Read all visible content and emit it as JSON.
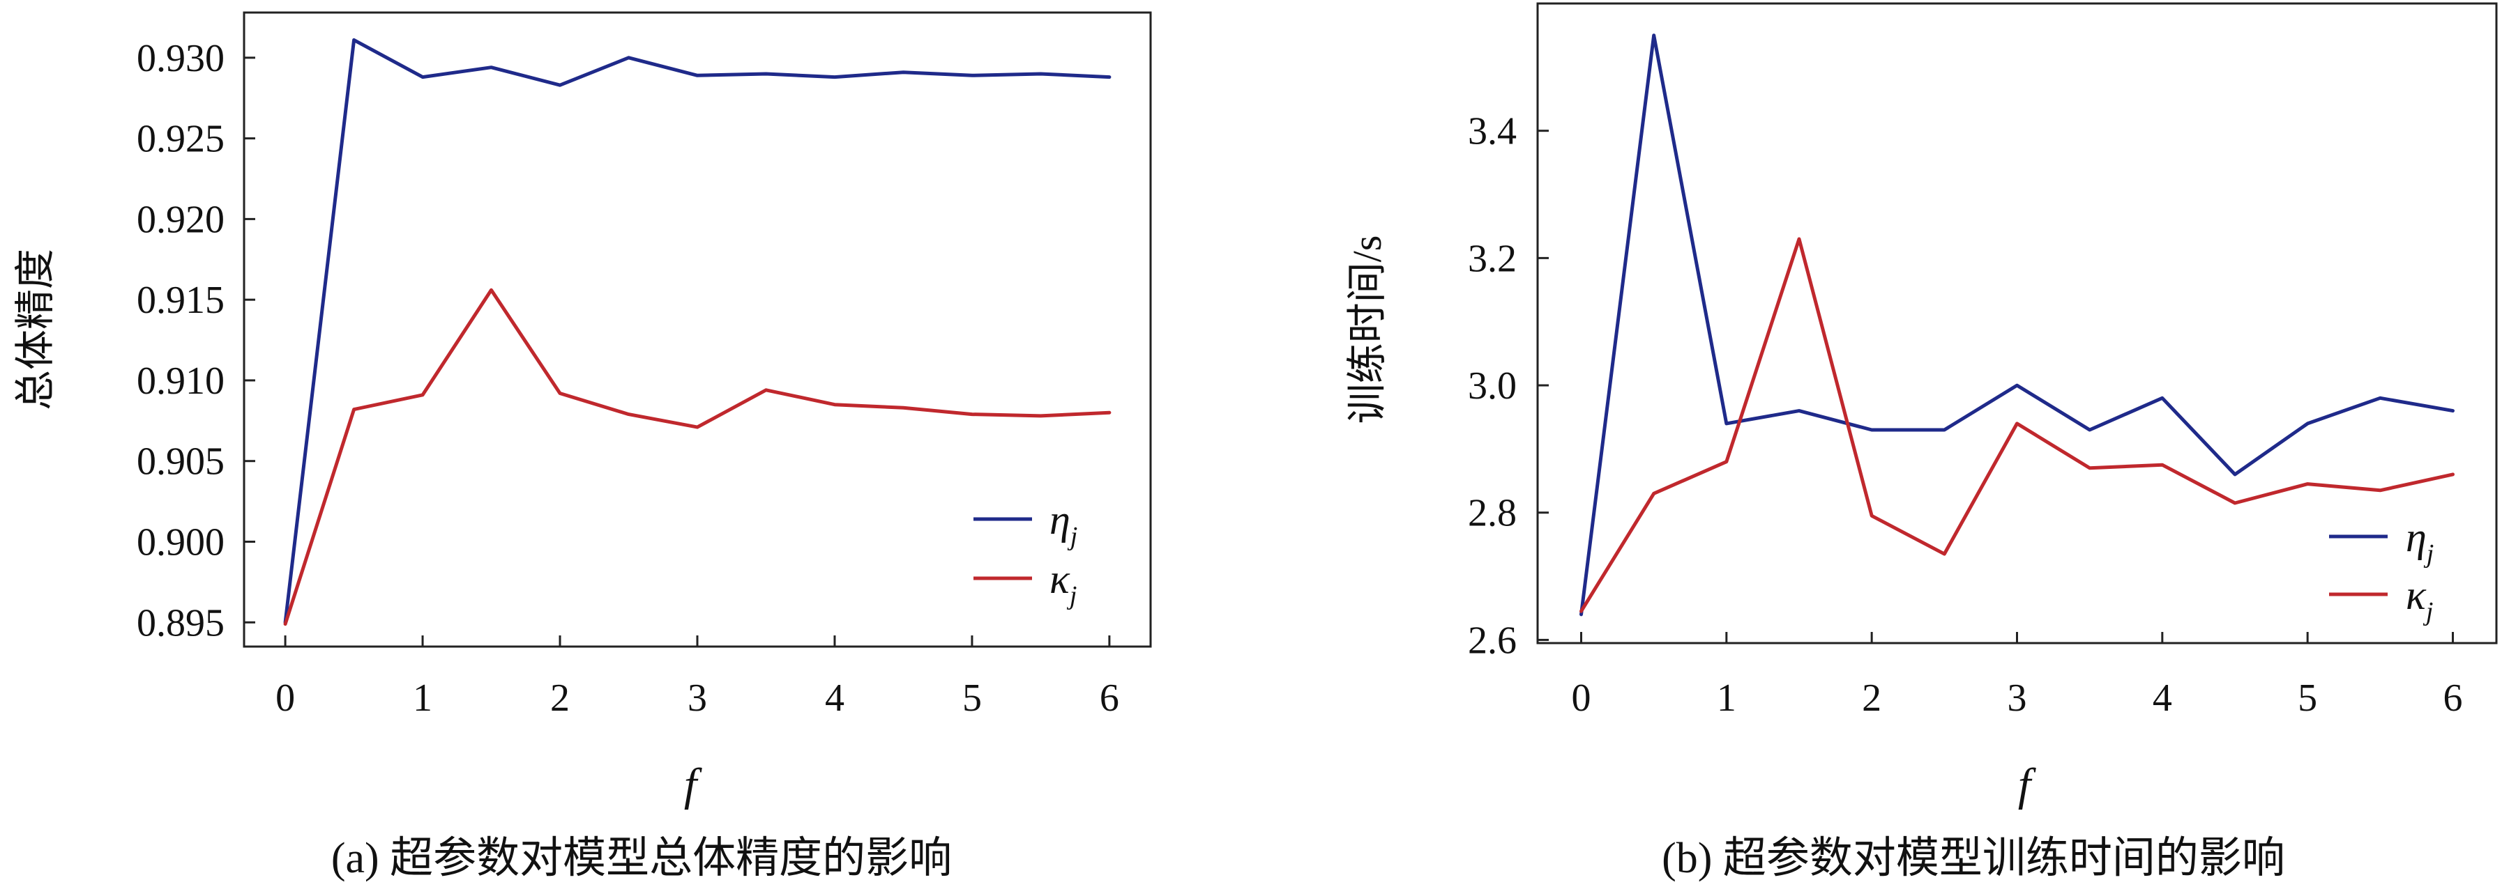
{
  "chart_data": [
    {
      "type": "line",
      "caption": "(a) 超参数对模型总体精度的影响",
      "title": "",
      "xlabel": "f",
      "ylabel": "总体精度",
      "xlim": [
        -0.3,
        6.3
      ],
      "ylim": [
        0.8935,
        0.9328
      ],
      "x_ticks": [
        0,
        1,
        2,
        3,
        4,
        5,
        6
      ],
      "y_ticks": [
        0.895,
        0.9,
        0.905,
        0.91,
        0.915,
        0.92,
        0.925,
        0.93
      ],
      "y_tick_labels": [
        "0.895",
        "0.900",
        "0.905",
        "0.910",
        "0.915",
        "0.920",
        "0.925",
        "0.930"
      ],
      "x": [
        0,
        0.5,
        1,
        1.5,
        2,
        2.5,
        3,
        3.5,
        4,
        4.5,
        5,
        5.5,
        6
      ],
      "series": [
        {
          "name": "ηj",
          "color": "#1f2a8a",
          "values": [
            0.895,
            0.9311,
            0.9288,
            0.9294,
            0.9283,
            0.93,
            0.9289,
            0.929,
            0.9288,
            0.9291,
            0.9289,
            0.929,
            0.9288
          ]
        },
        {
          "name": "κj",
          "color": "#c0282d",
          "values": [
            0.8949,
            0.9082,
            0.9091,
            0.9156,
            0.9092,
            0.9079,
            0.9071,
            0.9094,
            0.9085,
            0.9083,
            0.9079,
            0.9078,
            0.908
          ]
        }
      ],
      "legend": "bottom-right",
      "grid": false
    },
    {
      "type": "line",
      "caption": "(b) 超参数对模型训练时间的影响",
      "title": "",
      "xlabel": "f",
      "ylabel": "训练时间/s",
      "xlim": [
        -0.3,
        6.3
      ],
      "ylim": [
        2.595,
        3.6
      ],
      "x_ticks": [
        0,
        1,
        2,
        3,
        4,
        5,
        6
      ],
      "y_ticks": [
        2.6,
        2.8,
        3.0,
        3.2,
        3.4
      ],
      "y_tick_labels": [
        "2.6",
        "2.8",
        "3.0",
        "3.2",
        "3.4"
      ],
      "x": [
        0,
        0.5,
        1,
        1.5,
        2,
        2.5,
        3,
        3.5,
        4,
        4.5,
        5,
        5.5,
        6
      ],
      "series": [
        {
          "name": "ηj",
          "color": "#1f2a8a",
          "values": [
            2.64,
            3.55,
            2.94,
            2.96,
            2.93,
            2.93,
            3.0,
            2.93,
            2.98,
            2.86,
            2.94,
            2.98,
            2.96
          ]
        },
        {
          "name": "κj",
          "color": "#c0282d",
          "values": [
            2.645,
            2.83,
            2.88,
            3.23,
            2.795,
            2.735,
            2.94,
            2.87,
            2.875,
            2.815,
            2.845,
            2.835,
            2.86
          ]
        }
      ],
      "legend": "bottom-right",
      "grid": false
    }
  ]
}
